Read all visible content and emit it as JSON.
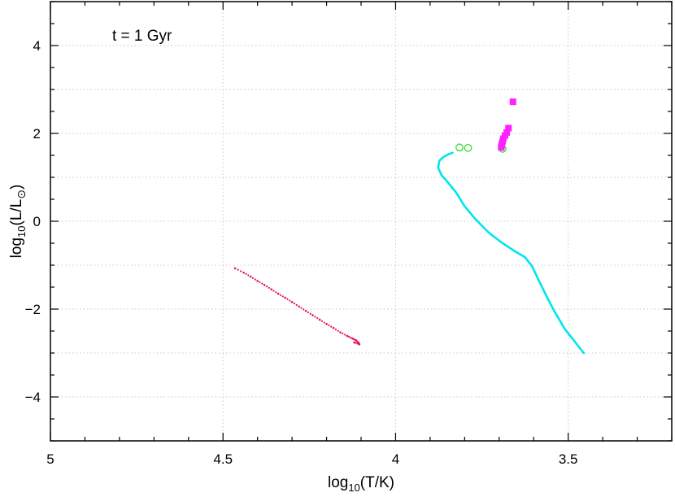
{
  "chart_data": {
    "type": "scatter",
    "annotation": "t = 1 Gyr",
    "xlabel": "log10(T/K)",
    "ylabel": "log10(L/L☉)",
    "xlim": [
      5,
      3.2
    ],
    "ylim": [
      -5,
      5
    ],
    "x_reversed": true,
    "grid": true,
    "x_ticks": [
      {
        "value": 5,
        "label": "5"
      },
      {
        "value": 4.5,
        "label": "4.5"
      },
      {
        "value": 4,
        "label": "4"
      },
      {
        "value": 3.5,
        "label": "3.5"
      }
    ],
    "y_ticks": [
      {
        "value": 4,
        "label": "4"
      },
      {
        "value": 2,
        "label": "2"
      },
      {
        "value": 0,
        "label": "0"
      },
      {
        "value": -2,
        "label": "−2"
      },
      {
        "value": -4,
        "label": "−4"
      }
    ],
    "series": [
      {
        "style": "line",
        "color": "#00e5ee",
        "points": [
          [
            3.455,
            -3.0
          ],
          [
            3.48,
            -2.75
          ],
          [
            3.51,
            -2.45
          ],
          [
            3.54,
            -2.05
          ],
          [
            3.56,
            -1.75
          ],
          [
            3.585,
            -1.35
          ],
          [
            3.605,
            -1.02
          ],
          [
            3.625,
            -0.82
          ],
          [
            3.655,
            -0.68
          ],
          [
            3.69,
            -0.5
          ],
          [
            3.73,
            -0.26
          ],
          [
            3.77,
            0.06
          ],
          [
            3.8,
            0.34
          ],
          [
            3.825,
            0.66
          ],
          [
            3.85,
            0.9
          ],
          [
            3.867,
            1.05
          ],
          [
            3.877,
            1.22
          ],
          [
            3.873,
            1.38
          ],
          [
            3.86,
            1.47
          ],
          [
            3.845,
            1.53
          ],
          [
            3.835,
            1.56
          ]
        ]
      },
      {
        "style": "dots",
        "color": "#e8105a",
        "points": [
          [
            4.465,
            -1.07
          ],
          [
            4.44,
            -1.17
          ],
          [
            4.42,
            -1.26
          ],
          [
            4.4,
            -1.36
          ],
          [
            4.38,
            -1.45
          ],
          [
            4.36,
            -1.55
          ],
          [
            4.34,
            -1.65
          ],
          [
            4.32,
            -1.74
          ],
          [
            4.3,
            -1.84
          ],
          [
            4.28,
            -1.94
          ],
          [
            4.26,
            -2.04
          ],
          [
            4.24,
            -2.14
          ],
          [
            4.22,
            -2.24
          ],
          [
            4.2,
            -2.34
          ],
          [
            4.18,
            -2.43
          ],
          [
            4.16,
            -2.53
          ],
          [
            4.14,
            -2.61
          ],
          [
            4.125,
            -2.67
          ],
          [
            4.115,
            -2.71
          ],
          [
            4.108,
            -2.76
          ],
          [
            4.105,
            -2.8
          ],
          [
            4.12,
            -2.76
          ]
        ]
      },
      {
        "style": "open-circle",
        "color": "#33dd33",
        "points": [
          [
            3.815,
            1.68
          ],
          [
            3.79,
            1.67
          ],
          [
            3.69,
            1.65
          ]
        ]
      },
      {
        "style": "square",
        "color": "#ff22ff",
        "points": [
          [
            3.66,
            2.72
          ],
          [
            3.673,
            2.12
          ],
          [
            3.678,
            2.02
          ],
          [
            3.683,
            1.95
          ],
          [
            3.688,
            1.88
          ],
          [
            3.69,
            1.82
          ],
          [
            3.692,
            1.76
          ],
          [
            3.693,
            1.72
          ],
          [
            3.694,
            1.68
          ]
        ]
      }
    ]
  }
}
